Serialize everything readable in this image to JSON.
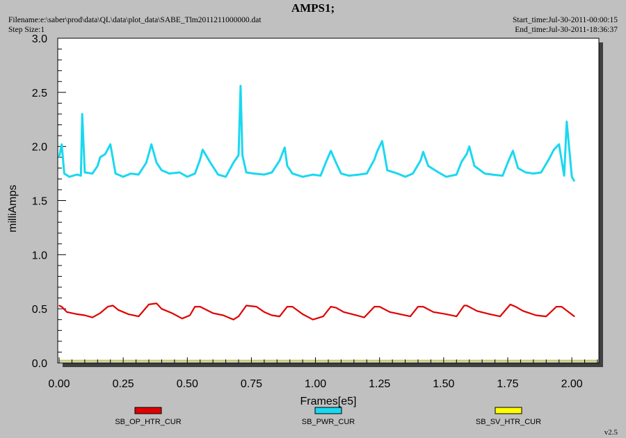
{
  "header": {
    "title": "AMPS1;",
    "filename": "Filename:e:\\saber\\prod\\data\\QL\\data\\plot_data\\SABE_Tlm2011211000000.dat",
    "step_size": "Step Size:1",
    "start_time": "Start_time:Jul-30-2011-00:00:15",
    "end_time": "End_time:Jul-30-2011-18:36:37",
    "version": "v2.5"
  },
  "chart_data": {
    "type": "line",
    "title": "AMPS1;",
    "xlabel": "Frames[e5]",
    "ylabel": "milliAmps",
    "xlim": [
      0.0,
      2.1
    ],
    "ylim": [
      0.0,
      3.0
    ],
    "x_ticks": [
      "0.00",
      "0.25",
      "0.50",
      "0.75",
      "1.00",
      "1.25",
      "1.50",
      "1.75",
      "2.00"
    ],
    "y_ticks": [
      "0.0",
      "0.5",
      "1.0",
      "1.5",
      "2.0",
      "2.5",
      "3.0"
    ],
    "legend_placement": "bottom",
    "series": [
      {
        "name": "SB_OP_HTR_CUR",
        "color": "#e00000",
        "x": [
          0.0,
          0.01,
          0.03,
          0.07,
          0.1,
          0.13,
          0.16,
          0.19,
          0.21,
          0.23,
          0.27,
          0.31,
          0.35,
          0.38,
          0.4,
          0.44,
          0.48,
          0.51,
          0.53,
          0.55,
          0.6,
          0.64,
          0.68,
          0.7,
          0.73,
          0.77,
          0.8,
          0.83,
          0.86,
          0.89,
          0.91,
          0.95,
          0.99,
          1.03,
          1.06,
          1.08,
          1.11,
          1.16,
          1.19,
          1.23,
          1.25,
          1.29,
          1.33,
          1.37,
          1.4,
          1.42,
          1.46,
          1.51,
          1.55,
          1.58,
          1.59,
          1.63,
          1.68,
          1.72,
          1.76,
          1.78,
          1.81,
          1.86,
          1.9,
          1.94,
          1.96,
          2.01
        ],
        "y": [
          0.53,
          0.52,
          0.47,
          0.45,
          0.44,
          0.42,
          0.46,
          0.52,
          0.53,
          0.49,
          0.45,
          0.43,
          0.54,
          0.55,
          0.5,
          0.46,
          0.41,
          0.44,
          0.52,
          0.52,
          0.46,
          0.44,
          0.4,
          0.43,
          0.53,
          0.52,
          0.47,
          0.44,
          0.43,
          0.52,
          0.52,
          0.45,
          0.4,
          0.43,
          0.52,
          0.51,
          0.47,
          0.44,
          0.42,
          0.52,
          0.52,
          0.47,
          0.45,
          0.43,
          0.52,
          0.52,
          0.47,
          0.45,
          0.43,
          0.53,
          0.53,
          0.48,
          0.45,
          0.43,
          0.54,
          0.52,
          0.48,
          0.44,
          0.43,
          0.52,
          0.52,
          0.43
        ]
      },
      {
        "name": "SB_PWR_CUR",
        "color": "#1ad8f0",
        "x": [
          0.0,
          0.01,
          0.02,
          0.04,
          0.07,
          0.085,
          0.09,
          0.1,
          0.13,
          0.15,
          0.16,
          0.18,
          0.2,
          0.22,
          0.25,
          0.28,
          0.31,
          0.34,
          0.36,
          0.38,
          0.4,
          0.43,
          0.47,
          0.5,
          0.53,
          0.55,
          0.56,
          0.59,
          0.62,
          0.65,
          0.68,
          0.7,
          0.708,
          0.715,
          0.73,
          0.76,
          0.8,
          0.83,
          0.86,
          0.88,
          0.89,
          0.91,
          0.95,
          0.99,
          1.02,
          1.04,
          1.06,
          1.08,
          1.1,
          1.13,
          1.17,
          1.2,
          1.23,
          1.24,
          1.26,
          1.28,
          1.32,
          1.35,
          1.38,
          1.41,
          1.42,
          1.44,
          1.48,
          1.51,
          1.55,
          1.57,
          1.59,
          1.6,
          1.62,
          1.66,
          1.69,
          1.73,
          1.75,
          1.77,
          1.79,
          1.82,
          1.85,
          1.88,
          1.91,
          1.93,
          1.95,
          1.97,
          1.98,
          2.0,
          2.01
        ],
        "y": [
          1.9,
          2.02,
          1.75,
          1.72,
          1.74,
          1.73,
          2.3,
          1.76,
          1.75,
          1.82,
          1.9,
          1.93,
          2.02,
          1.75,
          1.72,
          1.75,
          1.74,
          1.85,
          2.02,
          1.85,
          1.78,
          1.75,
          1.76,
          1.72,
          1.75,
          1.88,
          1.97,
          1.85,
          1.74,
          1.72,
          1.85,
          1.92,
          2.56,
          1.92,
          1.76,
          1.75,
          1.74,
          1.76,
          1.87,
          1.99,
          1.82,
          1.75,
          1.72,
          1.74,
          1.73,
          1.85,
          1.96,
          1.85,
          1.75,
          1.73,
          1.74,
          1.75,
          1.88,
          1.95,
          2.05,
          1.78,
          1.75,
          1.72,
          1.75,
          1.87,
          1.95,
          1.82,
          1.76,
          1.72,
          1.74,
          1.86,
          1.93,
          2.0,
          1.82,
          1.75,
          1.74,
          1.73,
          1.85,
          1.96,
          1.8,
          1.76,
          1.75,
          1.76,
          1.88,
          1.97,
          2.02,
          1.73,
          2.23,
          1.72,
          1.68
        ]
      },
      {
        "name": "SB_SV_HTR_CUR",
        "color": "#ffff00",
        "x": [],
        "y": []
      }
    ]
  }
}
